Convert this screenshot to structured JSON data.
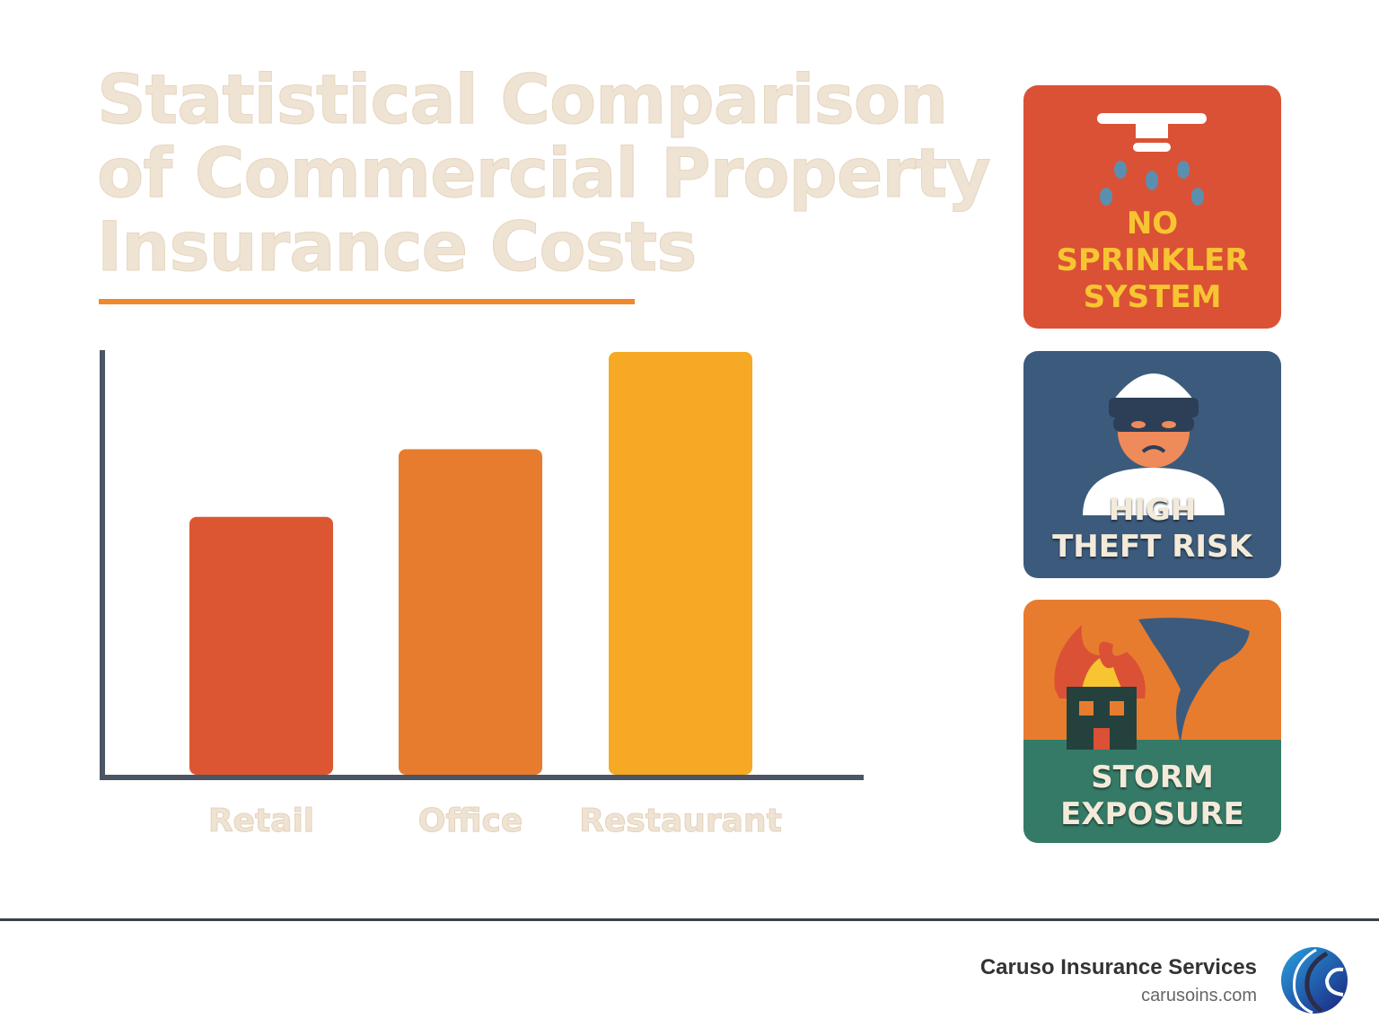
{
  "title": "Statistical Comparison of Commercial Property Insurance Costs",
  "chart_data": {
    "type": "bar",
    "title": "Statistical Comparison of Commercial Property Insurance Costs",
    "categories": [
      "Retail",
      "Office",
      "Restaurant"
    ],
    "values": [
      61,
      77,
      100
    ],
    "ylim": [
      0,
      100
    ],
    "xlabel": "",
    "ylabel": "",
    "grid": false,
    "colors": [
      "#dd5632",
      "#e87c2e",
      "#f5a925"
    ]
  },
  "risk_cards": [
    {
      "label": "NO SPRINKLER SYSTEM",
      "lines": [
        "NO",
        "SPRINKLER",
        "SYSTEM"
      ],
      "icon": "sprinkler-icon",
      "color": "#db5135"
    },
    {
      "label": "HIGH THEFT RISK",
      "lines": [
        "HIGH",
        "THEFT RISK"
      ],
      "icon": "burglar-icon",
      "color": "#3c5b7c"
    },
    {
      "label": "STORM EXPOSURE",
      "lines": [
        "STORM",
        "EXPOSURE"
      ],
      "icon": "burning-building-tornado-icon",
      "color": "#e87c2e"
    }
  ],
  "footer": {
    "company": "Caruso Insurance Services",
    "url": "carusoins.com",
    "logo": "caruso-logo"
  }
}
